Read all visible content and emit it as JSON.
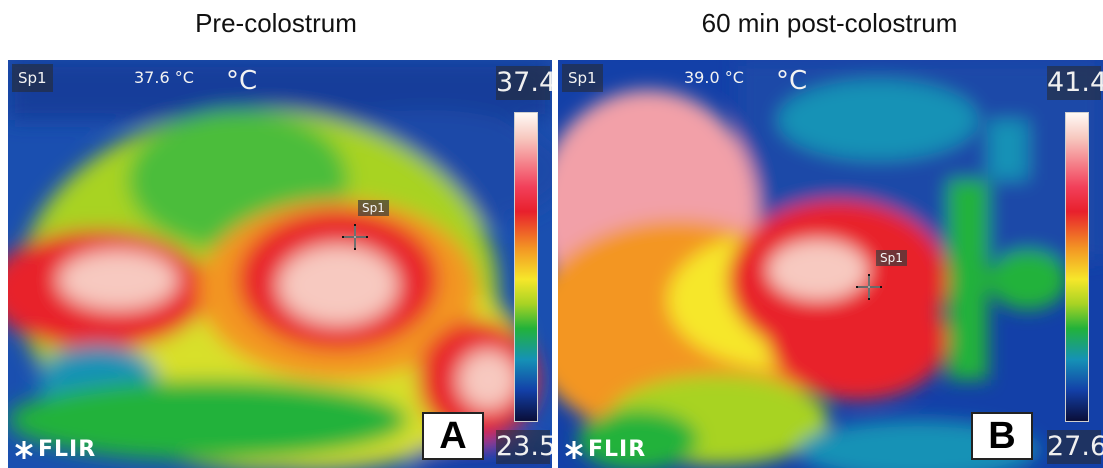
{
  "panels": [
    {
      "caption": "Pre-colostrum",
      "spot_label": "Sp1",
      "spot_temp": "37.6 °C",
      "unit": "°C",
      "scale_max": "37.4",
      "scale_min": "23.5",
      "brand": "FLIR",
      "letter": "A"
    },
    {
      "caption": "60 min post-colostrum",
      "spot_label": "Sp1",
      "spot_temp": "39.0 °C",
      "unit": "°C",
      "scale_max": "41.4",
      "scale_min": "27.6",
      "brand": "FLIR",
      "letter": "B"
    }
  ],
  "palette": {
    "hot": "#fffaf6",
    "red": "#e8202c",
    "yellow": "#f6e72a",
    "green": "#22b23a",
    "blue": "#1340a8",
    "cold": "#0a0e38"
  }
}
